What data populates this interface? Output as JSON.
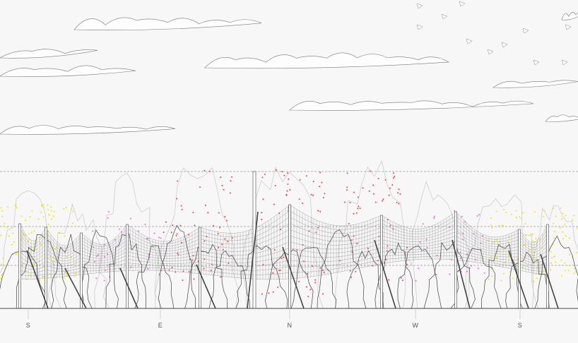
{
  "orientation_labels": [
    "S",
    "E",
    "N",
    "W",
    "S"
  ],
  "colors": {
    "background": "#f7f7f7",
    "line": "#555555",
    "light_line": "#c8c8c8",
    "red_flowers": "#ff3b3b",
    "pink_flowers": "#ee66dd",
    "yellow_flowers": "#f2e600"
  }
}
